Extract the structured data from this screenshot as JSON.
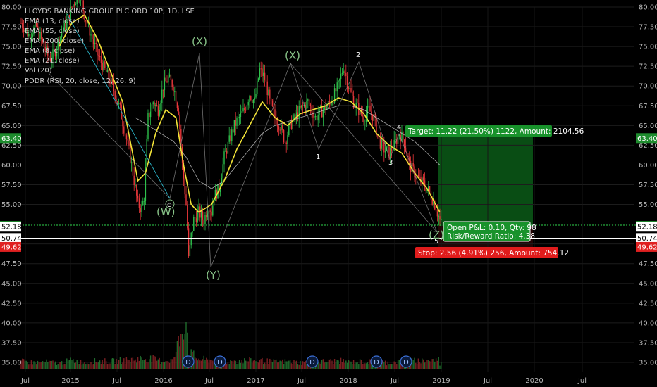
{
  "chart_data": {
    "type": "candlestick",
    "title": "LLOYDS BANKING GROUP PLC ORD 10P, 1D, LSE",
    "indicators": [
      "EMA (13, close)",
      "EMA (55, close)",
      "EMA (200, close)",
      "EMA (8, close)",
      "EMA (21, close)",
      "Vol (20)",
      "PDDR (RSI, 20, close, 12, 26, 9)"
    ],
    "y_ticks": [
      "80.00",
      "77.50",
      "75.00",
      "72.50",
      "70.00",
      "67.50",
      "65.00",
      "62.50",
      "60.00",
      "57.50",
      "55.00",
      "52.50",
      "50.00",
      "47.50",
      "45.00",
      "42.50",
      "40.00",
      "37.50",
      "35.00"
    ],
    "y_range": [
      32.5,
      81.5
    ],
    "x_ticks": [
      "Jul",
      "2015",
      "Jul",
      "2016",
      "Jul",
      "2017",
      "Jul",
      "2018",
      "Jul",
      "2019",
      "Jul",
      "2020",
      "Jul"
    ],
    "price_badges": {
      "target_price": "63.40",
      "current_price": "52.28",
      "last_close": "52.18",
      "entry": "50.74",
      "stop_price": "49.62"
    },
    "price_badge_colors": {
      "target_price": "#1e8c2e",
      "current_price": "#1e8c2e",
      "last_close": "#ffffff",
      "entry": "#ffffff",
      "stop_price": "#e02020"
    },
    "wave_labels": [
      "(X)",
      "(X)",
      "(W)",
      "c",
      "(Y)",
      "(Z)",
      "1",
      "2",
      "3",
      "4",
      "5"
    ],
    "dividend_markers": [
      "D",
      "D",
      "D",
      "D",
      "D"
    ],
    "position": {
      "target_text": "Target: 11.22 (21.50%) 1122, Amount: 2104.56",
      "open_pl_text": "Open P&L: 0.10, Qty: 98",
      "risk_reward_text": "Risk/Reward Ratio: 4.38",
      "stop_text": "Stop: 2.56 (4.91%) 256, Amount: 754.12"
    },
    "price_path": [
      [
        0,
        78
      ],
      [
        0.3,
        76.5
      ],
      [
        0.6,
        77.5
      ],
      [
        0.9,
        75
      ],
      [
        1.1,
        73.5
      ],
      [
        1.3,
        74
      ],
      [
        1.5,
        76
      ],
      [
        1.8,
        78
      ],
      [
        2.0,
        80
      ],
      [
        2.3,
        82
      ],
      [
        2.5,
        79
      ],
      [
        2.8,
        76
      ],
      [
        3.0,
        74
      ],
      [
        3.3,
        72
      ],
      [
        3.6,
        70
      ],
      [
        3.9,
        67
      ],
      [
        4.1,
        64
      ],
      [
        4.3,
        61
      ],
      [
        4.5,
        57
      ],
      [
        4.6,
        55
      ],
      [
        4.75,
        54.5
      ],
      [
        4.85,
        56
      ],
      [
        5.0,
        66
      ],
      [
        5.2,
        68
      ],
      [
        5.4,
        67
      ],
      [
        5.6,
        70
      ],
      [
        5.8,
        71
      ],
      [
        6.0,
        70
      ],
      [
        6.2,
        67
      ],
      [
        6.35,
        60
      ],
      [
        6.5,
        55
      ],
      [
        6.55,
        52
      ],
      [
        6.6,
        48
      ],
      [
        6.7,
        51
      ],
      [
        6.8,
        53
      ],
      [
        7.0,
        54
      ],
      [
        7.2,
        53
      ],
      [
        7.4,
        55
      ],
      [
        7.5,
        54
      ],
      [
        7.6,
        56
      ],
      [
        7.8,
        57
      ],
      [
        8.0,
        61
      ],
      [
        8.2,
        63
      ],
      [
        8.4,
        65
      ],
      [
        8.6,
        66
      ],
      [
        8.8,
        67
      ],
      [
        9.0,
        69
      ],
      [
        9.2,
        68
      ],
      [
        9.4,
        72
      ],
      [
        9.6,
        71
      ],
      [
        9.8,
        68
      ],
      [
        10.0,
        66
      ],
      [
        10.2,
        65
      ],
      [
        10.4,
        63
      ],
      [
        10.6,
        65
      ],
      [
        10.8,
        66
      ],
      [
        11.0,
        67
      ],
      [
        11.3,
        68
      ],
      [
        11.6,
        66
      ],
      [
        11.9,
        67
      ],
      [
        12.2,
        68
      ],
      [
        12.5,
        70
      ],
      [
        12.7,
        72.5
      ],
      [
        12.9,
        70
      ],
      [
        13.1,
        68
      ],
      [
        13.3,
        67
      ],
      [
        13.5,
        66
      ],
      [
        13.7,
        67
      ],
      [
        13.9,
        66
      ],
      [
        14.1,
        63
      ],
      [
        14.3,
        62
      ],
      [
        14.5,
        61.5
      ],
      [
        14.7,
        62.5
      ],
      [
        14.9,
        64
      ],
      [
        15.1,
        63
      ],
      [
        15.3,
        60
      ],
      [
        15.5,
        59
      ],
      [
        15.7,
        58
      ],
      [
        15.9,
        57.5
      ],
      [
        16.1,
        56.5
      ],
      [
        16.3,
        55
      ],
      [
        16.5,
        53
      ],
      [
        16.6,
        52.3
      ]
    ],
    "volume": [
      [
        0,
        1.4
      ],
      [
        0.5,
        1.2
      ],
      [
        1,
        1.3
      ],
      [
        1.5,
        1.1
      ],
      [
        2,
        1.6
      ],
      [
        2.5,
        1.2
      ],
      [
        3,
        1.5
      ],
      [
        3.5,
        1.4
      ],
      [
        4,
        1.6
      ],
      [
        4.5,
        1.8
      ],
      [
        5,
        2.0
      ],
      [
        5.5,
        1.5
      ],
      [
        6,
        1.7
      ],
      [
        6.5,
        9.5
      ],
      [
        6.6,
        3.0
      ],
      [
        7,
        1.8
      ],
      [
        7.5,
        1.6
      ],
      [
        8,
        1.4
      ],
      [
        8.5,
        1.5
      ],
      [
        9,
        1.6
      ],
      [
        9.5,
        1.5
      ],
      [
        10,
        1.3
      ],
      [
        10.5,
        1.4
      ],
      [
        11,
        1.2
      ],
      [
        11.5,
        1.3
      ],
      [
        12,
        1.4
      ],
      [
        12.5,
        1.5
      ],
      [
        13,
        1.3
      ],
      [
        13.5,
        1.4
      ],
      [
        14,
        1.3
      ],
      [
        14.5,
        1.2
      ],
      [
        15,
        1.4
      ],
      [
        15.5,
        1.5
      ],
      [
        16,
        1.6
      ],
      [
        16.5,
        1.7
      ]
    ],
    "ema_fast_yellow": [
      [
        1.5,
        75
      ],
      [
        2,
        78
      ],
      [
        2.5,
        79
      ],
      [
        3,
        76
      ],
      [
        3.5,
        72
      ],
      [
        4,
        68
      ],
      [
        4.3,
        63
      ],
      [
        4.6,
        58
      ],
      [
        4.9,
        59
      ],
      [
        5.3,
        64
      ],
      [
        5.7,
        67
      ],
      [
        6.1,
        66
      ],
      [
        6.4,
        60
      ],
      [
        6.7,
        55
      ],
      [
        7.0,
        54
      ],
      [
        7.5,
        55
      ],
      [
        8,
        58
      ],
      [
        8.5,
        62
      ],
      [
        9,
        65
      ],
      [
        9.5,
        68
      ],
      [
        10,
        66
      ],
      [
        10.5,
        65
      ],
      [
        11,
        66.5
      ],
      [
        11.5,
        67
      ],
      [
        12,
        67.5
      ],
      [
        12.5,
        68.5
      ],
      [
        13,
        68
      ],
      [
        13.5,
        66.5
      ],
      [
        14,
        64
      ],
      [
        14.5,
        62.5
      ],
      [
        15,
        61.5
      ],
      [
        15.5,
        59
      ],
      [
        16,
        57
      ],
      [
        16.5,
        54
      ]
    ],
    "ema_slow_white": [
      [
        4.5,
        66
      ],
      [
        5,
        65
      ],
      [
        5.5,
        64
      ],
      [
        6,
        63
      ],
      [
        6.5,
        61
      ],
      [
        7,
        58
      ],
      [
        7.5,
        57
      ],
      [
        8,
        58
      ],
      [
        8.5,
        60
      ],
      [
        9,
        62
      ],
      [
        9.5,
        64
      ],
      [
        10,
        65
      ],
      [
        10.5,
        65.5
      ],
      [
        11,
        66
      ],
      [
        11.5,
        66.5
      ],
      [
        12,
        67
      ],
      [
        12.5,
        67.5
      ],
      [
        13,
        67.5
      ],
      [
        13.5,
        67
      ],
      [
        14,
        66
      ],
      [
        14.5,
        65
      ],
      [
        15,
        64
      ],
      [
        15.5,
        63
      ],
      [
        16,
        61.5
      ],
      [
        16.5,
        60
      ]
    ]
  }
}
